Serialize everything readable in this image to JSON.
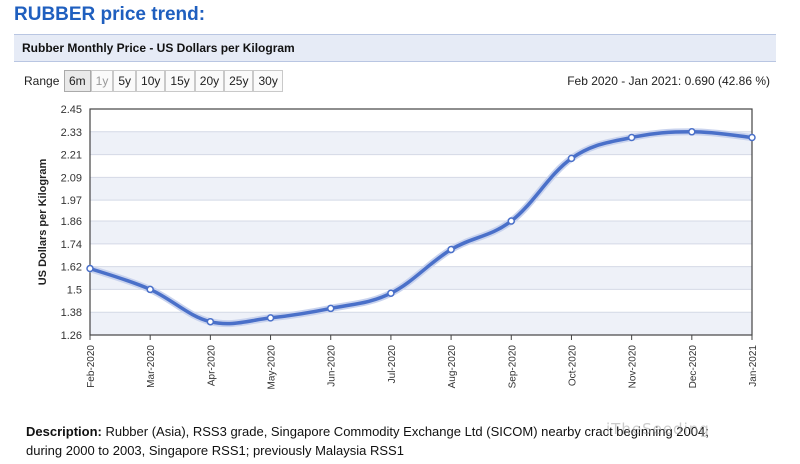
{
  "heading": "RUBBER price trend:",
  "panel_title": "Rubber Monthly Price - US Dollars per Kilogram",
  "range": {
    "label": "Range",
    "buttons": [
      "6m",
      "1y",
      "5y",
      "10y",
      "15y",
      "20y",
      "25y",
      "30y"
    ],
    "selected": "6m"
  },
  "summary": "Feb 2020 - Jan 2021: 0.690 (42.86 %)",
  "description": {
    "label": "Description:",
    "line1": " Rubber (Asia), RSS3 grade, Singapore Commodity Exchange Ltd (SICOM) nearby c",
    "line1_tail": "ract beginning 2004;",
    "line2": "during 2000 to 2003, Singapore RSS1; previously Malaysia RSS1"
  },
  "watermark": "iTheSeeding",
  "colors": {
    "line": "#4a70c9",
    "heading": "#1f5fbf",
    "band": "#eef1f8"
  },
  "chart_data": {
    "type": "line",
    "ylabel": "US Dollars per Kilogram",
    "xlabel": "",
    "ylim": [
      1.26,
      2.45
    ],
    "yticks": [
      "2.45",
      "2.33",
      "2.21",
      "2.09",
      "1.97",
      "1.86",
      "1.74",
      "1.62",
      "1.5",
      "1.38",
      "1.26"
    ],
    "categories": [
      "Feb-2020",
      "Mar-2020",
      "Apr-2020",
      "May-2020",
      "Jun-2020",
      "Jul-2020",
      "Aug-2020",
      "Sep-2020",
      "Oct-2020",
      "Nov-2020",
      "Dec-2020",
      "Jan-2021"
    ],
    "values": [
      1.61,
      1.5,
      1.33,
      1.35,
      1.4,
      1.48,
      1.71,
      1.86,
      2.19,
      2.3,
      2.33,
      2.3
    ],
    "grid": true
  }
}
